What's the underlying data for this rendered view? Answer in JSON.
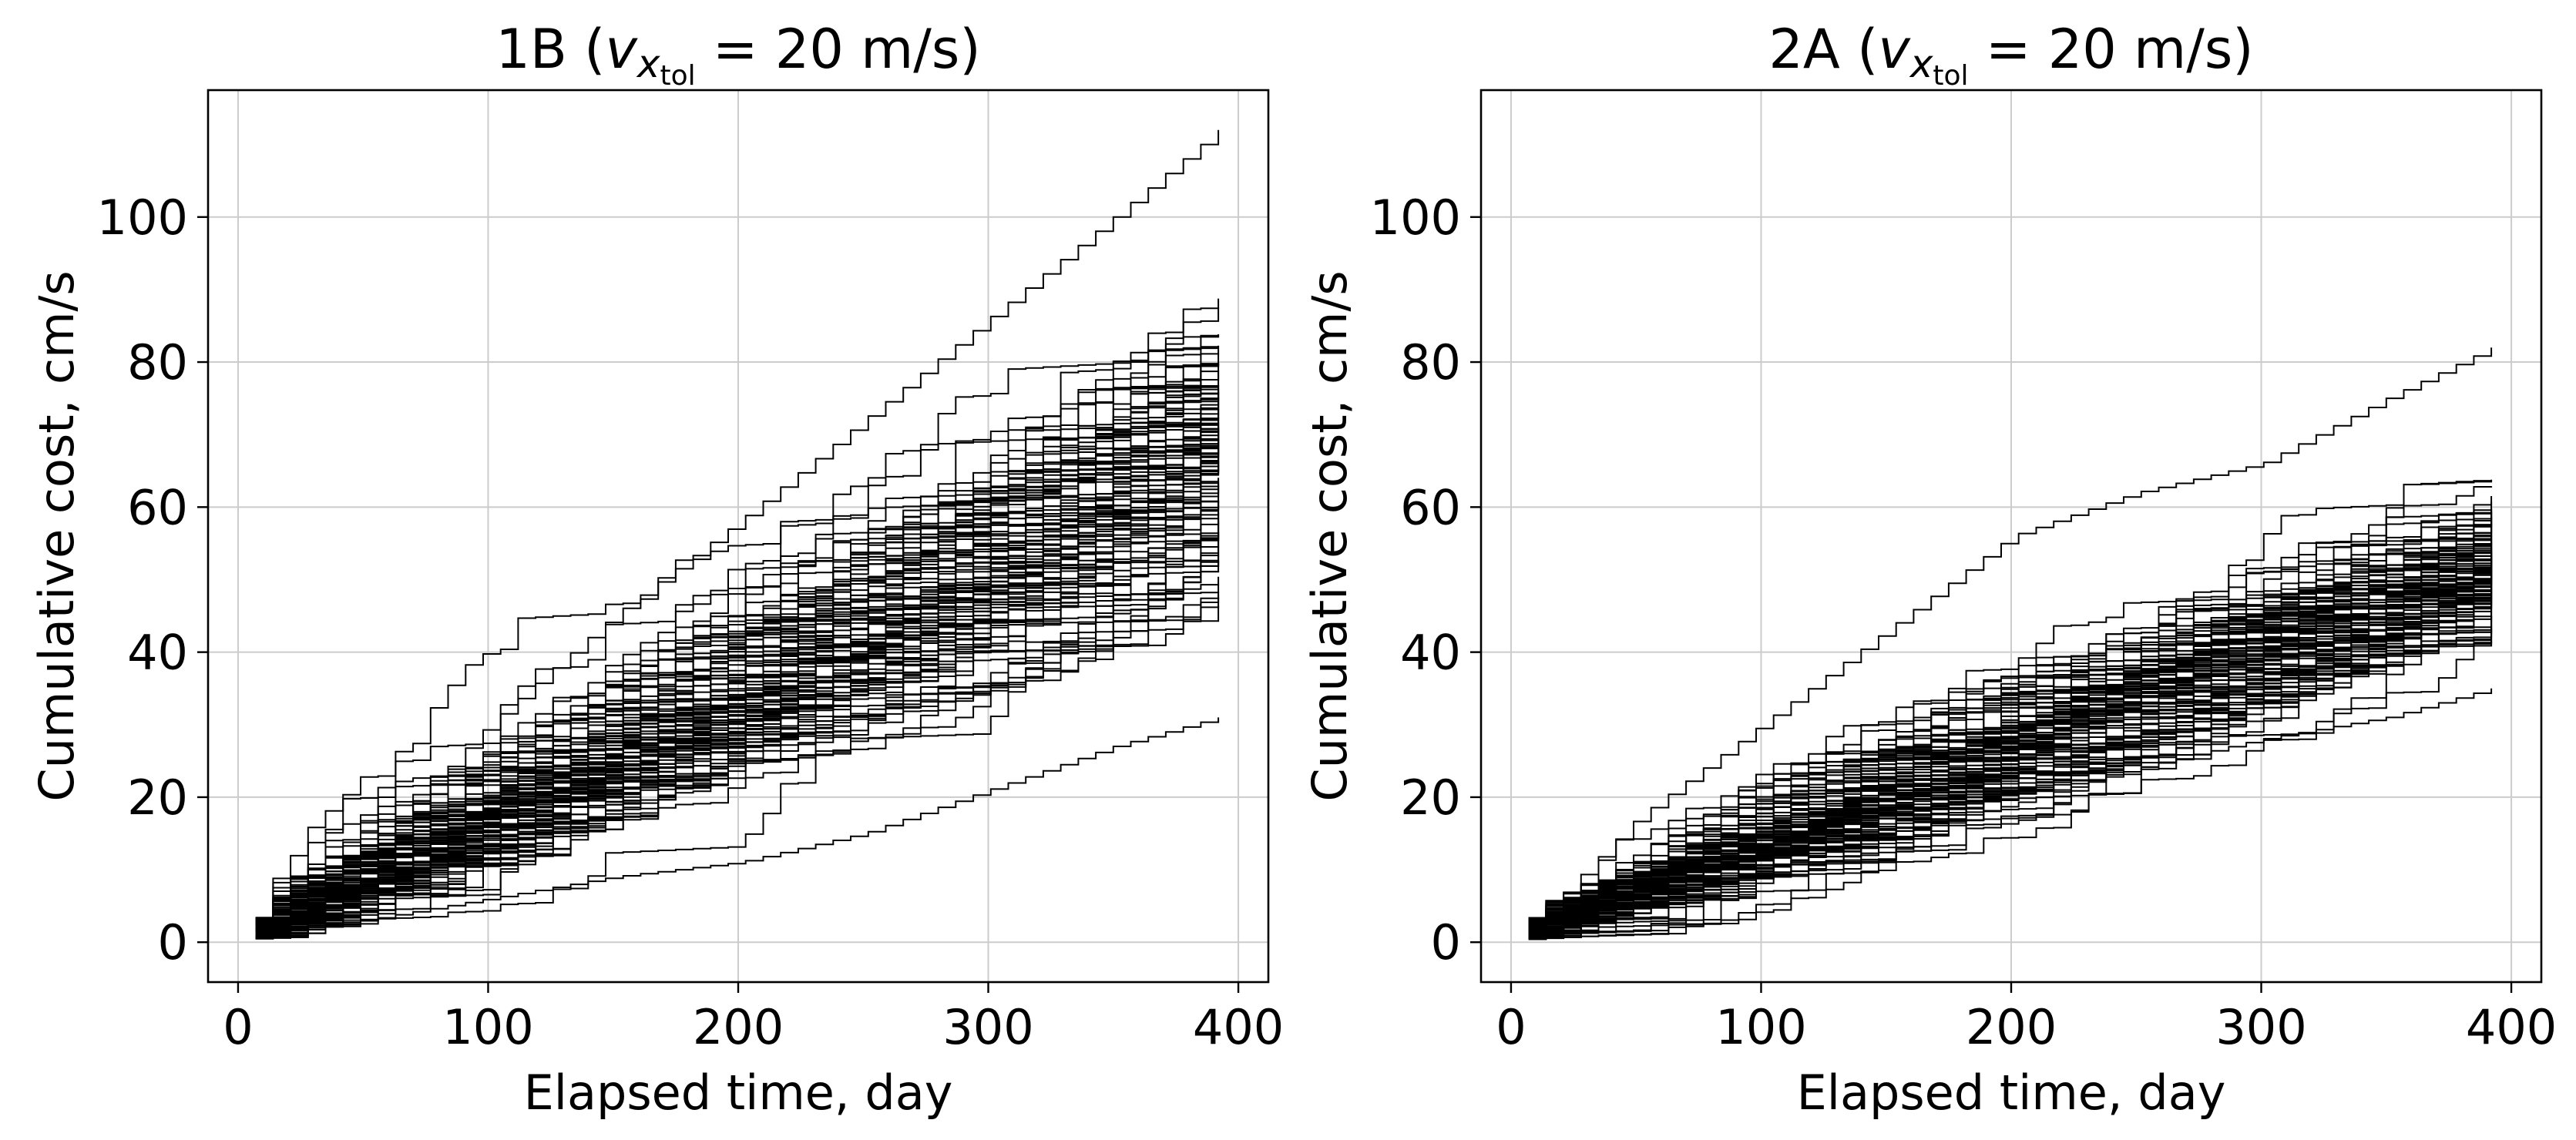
{
  "chart_data": [
    {
      "type": "line",
      "line_style": "step",
      "title": "1B (v_x_tol = 20 m/s)",
      "title_parts": {
        "prefix": "1B (",
        "var": "v",
        "sub": "x",
        "subsub": "tol",
        "suffix": " = 20 m/s)"
      },
      "xlabel": "Elapsed time, day",
      "ylabel": "Cumulative cost, cm/s",
      "xlim": [
        -12,
        412
      ],
      "ylim": [
        -5.5,
        117.5
      ],
      "xticks": [
        0,
        100,
        200,
        300,
        400
      ],
      "yticks": [
        0,
        20,
        40,
        60,
        80,
        100
      ],
      "grid": true,
      "n_series": 100,
      "start_day": 7,
      "end_day": 392,
      "step_days": 7,
      "final_values_range": [
        31,
        112
      ],
      "series_color": "#000000",
      "notable_series": [
        {
          "name": "max trajectory",
          "x": [
            7,
            50,
            100,
            150,
            200,
            250,
            300,
            350,
            392
          ],
          "y": [
            1,
            12,
            30,
            45,
            58,
            72,
            86,
            100,
            112
          ]
        },
        {
          "name": "min trajectory",
          "x": [
            7,
            50,
            100,
            150,
            200,
            250,
            300,
            350,
            392
          ],
          "y": [
            0.5,
            3,
            6,
            9,
            11,
            15,
            21,
            27,
            31
          ]
        }
      ]
    },
    {
      "type": "line",
      "line_style": "step",
      "title": "2A (v_x_tol = 20 m/s)",
      "title_parts": {
        "prefix": "2A (",
        "var": "v",
        "sub": "x",
        "subsub": "tol",
        "suffix": " = 20 m/s)"
      },
      "xlabel": "Elapsed time, day",
      "ylabel": "Cumulative cost, cm/s",
      "xlim": [
        -12,
        412
      ],
      "ylim": [
        -5.5,
        117.5
      ],
      "xticks": [
        0,
        100,
        200,
        300,
        400
      ],
      "yticks": [
        0,
        20,
        40,
        60,
        80,
        100
      ],
      "grid": true,
      "n_series": 100,
      "start_day": 7,
      "end_day": 392,
      "step_days": 7,
      "final_values_range": [
        35,
        82
      ],
      "series_color": "#000000",
      "notable_series": [
        {
          "name": "max trajectory",
          "x": [
            7,
            50,
            100,
            150,
            200,
            250,
            300,
            350,
            392
          ],
          "y": [
            2,
            17,
            30,
            43,
            56,
            62,
            66,
            75,
            82
          ]
        },
        {
          "name": "min trajectory",
          "x": [
            7,
            50,
            100,
            150,
            200,
            250,
            300,
            350,
            392
          ],
          "y": [
            0.5,
            5,
            10,
            15,
            19,
            24,
            28,
            31,
            35
          ]
        }
      ]
    }
  ]
}
